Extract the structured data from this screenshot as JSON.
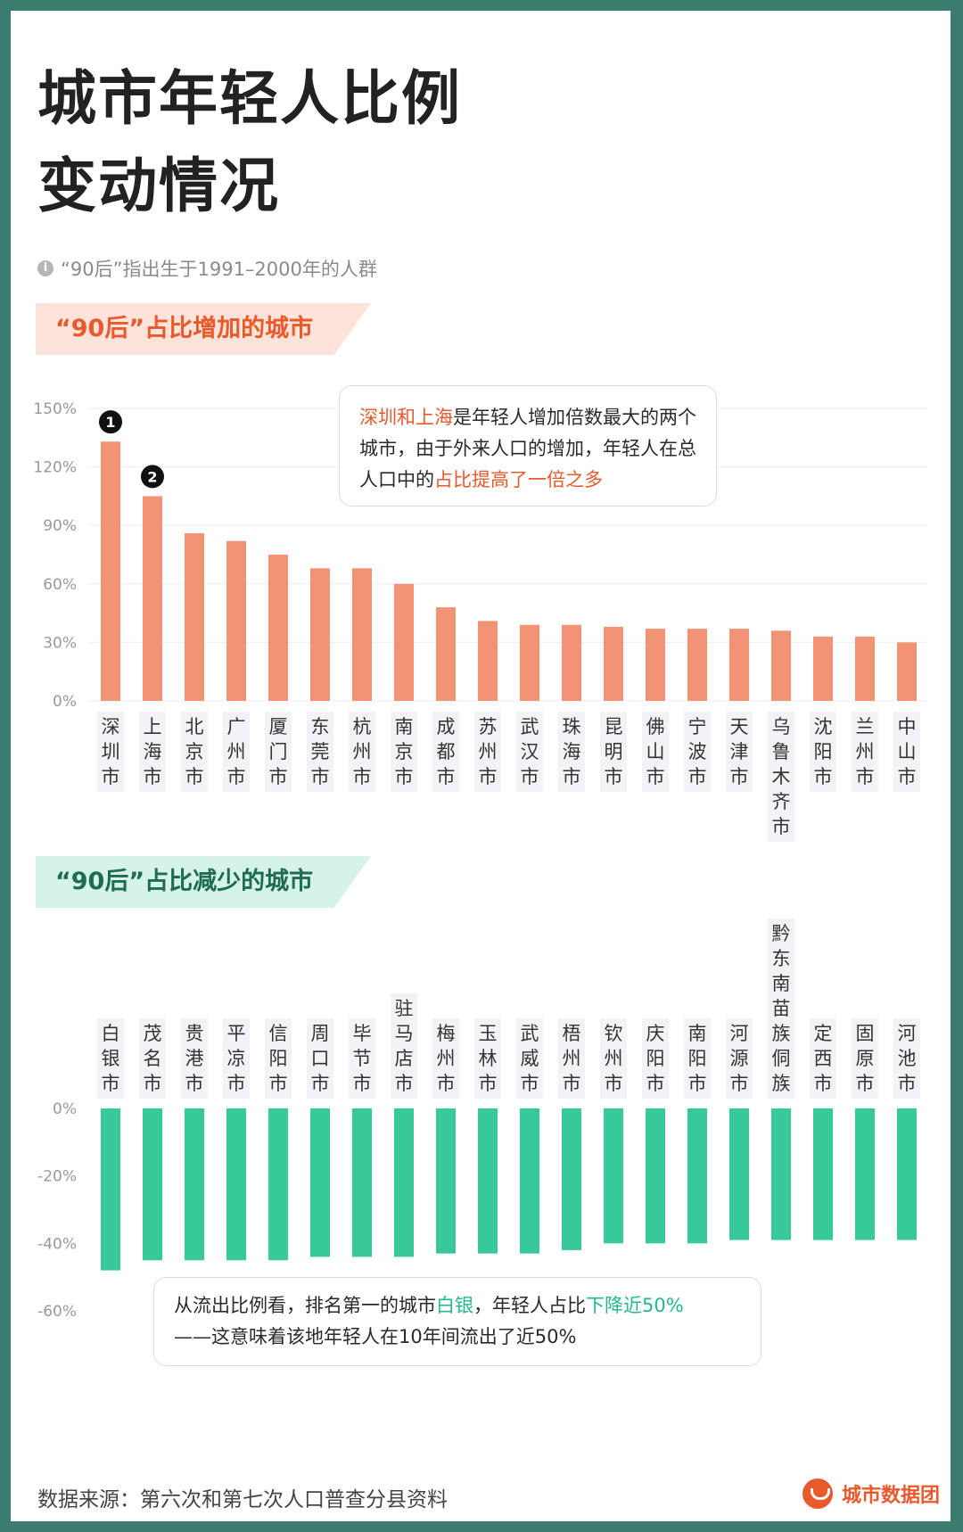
{
  "title_line1": "城市年轻人比例",
  "title_line2": "变动情况",
  "note": "“90后”指出生于1991–2000年的人群",
  "section_increase": "“90后”占比增加的城市",
  "section_decrease": "“90后”占比减少的城市",
  "callout1": {
    "hl1": "深圳和上海",
    "text1": "是年轻人增加倍数最大的两个城市，由于外来人口的增加，年轻人在总人口中的",
    "hl2": "占比提高了一倍之多"
  },
  "callout2": {
    "text1": "从流出比例看，排名第一的城市",
    "hl1": "白银",
    "text2": "，年轻人占比",
    "hl2": "下降近50%",
    "text3": "——这意味着该地年轻人在10年间流出了近50%"
  },
  "footer": "数据来源：第六次和第七次人口普查分县资料",
  "brand": "城市数据团",
  "colors": {
    "increase": "#f39375",
    "decrease": "#38c99a",
    "accent_red": "#e8592c",
    "accent_green": "#23b88c"
  },
  "chart_data": [
    {
      "type": "bar",
      "categories": [
        "深圳市",
        "上海市",
        "北京市",
        "广州市",
        "厦门市",
        "东莞市",
        "杭州市",
        "南京市",
        "成都市",
        "苏州市",
        "武汉市",
        "珠海市",
        "昆明市",
        "佛山市",
        "宁波市",
        "天津市",
        "乌鲁木齐市",
        "沈阳市",
        "兰州市",
        "中山市"
      ],
      "values": [
        133,
        105,
        86,
        82,
        75,
        68,
        68,
        60,
        48,
        41,
        39,
        39,
        38,
        37,
        37,
        37,
        36,
        33,
        33,
        30
      ],
      "ylim": [
        0,
        150
      ],
      "yticks": [
        0,
        30,
        60,
        90,
        120,
        150
      ],
      "tick_labels": [
        "0%",
        "30%",
        "60%",
        "90%",
        "120%",
        "150%"
      ],
      "markers": [
        "1",
        "2"
      ],
      "grid": true
    },
    {
      "type": "bar",
      "categories": [
        "白银市",
        "茂名市",
        "贵港市",
        "平凉市",
        "信阳市",
        "周口市",
        "毕节市",
        "驻马店市",
        "梅州市",
        "玉林市",
        "武威市",
        "梧州市",
        "钦州市",
        "庆阳市",
        "南阳市",
        "河源市",
        "黔东南苗族侗族",
        "定西市",
        "固原市",
        "河池市"
      ],
      "values": [
        -48,
        -45,
        -45,
        -45,
        -45,
        -44,
        -44,
        -44,
        -43,
        -43,
        -43,
        -42,
        -40,
        -40,
        -40,
        -39,
        -39,
        -39,
        -39,
        -39
      ],
      "ylim": [
        -60,
        0
      ],
      "yticks": [
        0,
        -20,
        -40,
        -60
      ],
      "tick_labels": [
        "0%",
        "-20%",
        "-40%",
        "-60%"
      ],
      "grid": false
    }
  ]
}
